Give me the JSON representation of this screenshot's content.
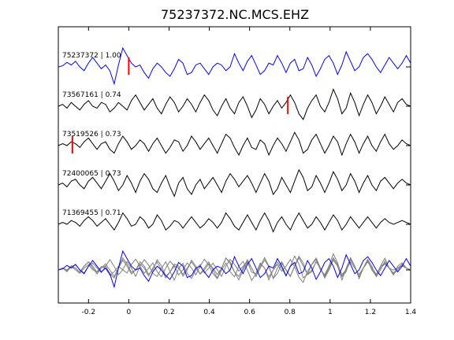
{
  "chart_data": {
    "type": "line",
    "title": "75237372.NC.MCS.EHZ",
    "xlabel": "",
    "ylabel": "",
    "xlim": [
      -0.35,
      1.4
    ],
    "x_ticks": [
      -0.2,
      0,
      0.2,
      0.4,
      0.6,
      0.8,
      1,
      1.2,
      1.4
    ],
    "x_tick_labels": [
      "-0.2",
      "0",
      "0.2",
      "0.4",
      "0.6",
      "0.8",
      "1",
      "1.2",
      "1.4"
    ],
    "grid": false,
    "series": [
      {
        "name": "75237372 | 1.00",
        "color": "#0000ff",
        "pick_time": 0.0,
        "samples": [
          0.0,
          0.03,
          0.12,
          0.05,
          0.15,
          0.0,
          -0.1,
          0.1,
          0.25,
          0.1,
          -0.05,
          0.05,
          -0.1,
          -0.45,
          0.05,
          0.5,
          0.3,
          0.1,
          0.0,
          0.05,
          -0.15,
          -0.3,
          -0.05,
          0.1,
          0.0,
          -0.15,
          -0.25,
          -0.05,
          0.2,
          0.1,
          -0.2,
          -0.15,
          0.05,
          0.1,
          -0.05,
          -0.2,
          0.0,
          0.1,
          0.05,
          -0.1,
          0.0,
          0.35,
          0.1,
          -0.1,
          0.15,
          0.3,
          0.05,
          -0.2,
          -0.1,
          0.1,
          0.05,
          0.3,
          0.1,
          -0.15,
          0.1,
          0.2,
          -0.1,
          -0.05,
          0.25,
          0.05,
          -0.25,
          -0.05,
          0.2,
          0.3,
          0.1,
          -0.2,
          0.05,
          0.4,
          0.15,
          -0.1,
          0.0,
          0.25,
          0.35,
          0.2,
          0.0,
          -0.15,
          0.05,
          0.25,
          0.1,
          -0.05,
          0.1,
          0.3,
          0.1
        ]
      },
      {
        "name": "73567161 | 0.74",
        "color": "#000000",
        "pick_time": 0.79,
        "samples": [
          0.0,
          0.05,
          -0.05,
          0.1,
          0.0,
          -0.1,
          0.05,
          0.15,
          0.0,
          -0.05,
          0.1,
          0.05,
          -0.15,
          -0.05,
          0.1,
          0.0,
          -0.1,
          0.15,
          0.3,
          0.1,
          -0.1,
          0.05,
          0.2,
          -0.05,
          -0.2,
          0.05,
          0.25,
          0.1,
          -0.15,
          0.0,
          0.2,
          0.05,
          -0.15,
          0.1,
          0.3,
          0.15,
          -0.1,
          -0.25,
          0.0,
          0.2,
          -0.05,
          -0.2,
          0.1,
          0.25,
          0.0,
          -0.3,
          -0.1,
          0.2,
          0.05,
          -0.2,
          0.0,
          0.15,
          -0.05,
          0.1,
          0.3,
          0.1,
          -0.2,
          -0.35,
          -0.05,
          0.15,
          0.3,
          0.0,
          -0.15,
          0.1,
          0.45,
          0.2,
          -0.2,
          -0.05,
          0.35,
          0.1,
          -0.25,
          0.05,
          0.3,
          0.1,
          -0.2,
          0.0,
          0.25,
          0.05,
          -0.15,
          0.1,
          0.2,
          0.05,
          0.0
        ]
      },
      {
        "name": "73519526 | 0.73",
        "color": "#000000",
        "pick_time": -0.28,
        "samples": [
          0.0,
          0.05,
          0.0,
          0.1,
          0.05,
          -0.05,
          0.1,
          0.2,
          0.05,
          -0.1,
          0.05,
          0.1,
          -0.1,
          -0.2,
          0.05,
          0.25,
          0.1,
          -0.1,
          0.0,
          0.15,
          0.05,
          -0.15,
          0.05,
          0.2,
          0.0,
          -0.2,
          -0.05,
          0.15,
          0.1,
          -0.15,
          0.0,
          0.25,
          0.1,
          -0.1,
          0.05,
          0.2,
          0.0,
          -0.2,
          0.05,
          0.3,
          0.2,
          -0.05,
          -0.25,
          0.0,
          0.2,
          -0.05,
          -0.1,
          0.15,
          0.05,
          -0.25,
          0.0,
          0.2,
          0.05,
          -0.15,
          0.1,
          0.35,
          0.15,
          -0.2,
          -0.1,
          0.15,
          0.3,
          0.05,
          -0.2,
          0.0,
          0.25,
          0.1,
          -0.25,
          0.05,
          0.3,
          0.1,
          -0.2,
          0.05,
          0.25,
          0.0,
          -0.15,
          0.1,
          0.3,
          0.05,
          -0.1,
          0.0,
          0.15,
          0.05,
          0.0
        ]
      },
      {
        "name": "72400065 | 0.73",
        "color": "#000000",
        "pick_time": null,
        "samples": [
          0.0,
          0.05,
          -0.05,
          0.1,
          0.15,
          0.0,
          -0.1,
          0.1,
          0.2,
          0.05,
          -0.1,
          0.1,
          0.3,
          0.1,
          -0.15,
          0.0,
          0.25,
          0.05,
          -0.2,
          0.1,
          0.3,
          0.15,
          -0.1,
          -0.2,
          0.05,
          0.25,
          -0.05,
          -0.3,
          0.05,
          0.2,
          -0.1,
          -0.25,
          0.0,
          0.15,
          -0.1,
          0.05,
          0.2,
          0.0,
          -0.2,
          0.1,
          0.3,
          0.15,
          -0.05,
          0.1,
          0.25,
          0.05,
          -0.2,
          0.05,
          0.3,
          0.1,
          -0.25,
          -0.1,
          0.2,
          0.0,
          -0.2,
          0.1,
          0.4,
          0.2,
          -0.15,
          -0.05,
          0.25,
          0.05,
          -0.2,
          0.05,
          0.35,
          0.15,
          -0.15,
          0.0,
          0.3,
          0.1,
          -0.2,
          0.05,
          0.25,
          0.0,
          -0.15,
          0.1,
          0.2,
          0.05,
          -0.1,
          0.05,
          0.15,
          0.05,
          0.0
        ]
      },
      {
        "name": "71369455 | 0.71",
        "color": "#000000",
        "pick_time": null,
        "samples": [
          0.0,
          0.05,
          0.0,
          0.1,
          0.05,
          -0.05,
          0.1,
          0.2,
          0.1,
          -0.05,
          0.05,
          0.15,
          0.0,
          -0.15,
          0.05,
          0.3,
          0.15,
          -0.05,
          0.0,
          0.2,
          0.1,
          -0.1,
          0.0,
          0.25,
          0.1,
          -0.15,
          -0.05,
          0.1,
          0.05,
          -0.1,
          0.05,
          0.2,
          0.05,
          -0.1,
          0.0,
          0.15,
          0.05,
          -0.1,
          0.05,
          0.3,
          0.15,
          -0.05,
          -0.15,
          0.05,
          0.25,
          0.05,
          -0.15,
          0.1,
          0.3,
          0.1,
          -0.2,
          0.05,
          0.2,
          0.0,
          -0.15,
          0.1,
          0.3,
          0.1,
          -0.1,
          0.0,
          0.2,
          0.05,
          -0.15,
          0.05,
          0.25,
          0.1,
          -0.15,
          0.0,
          0.2,
          0.05,
          -0.1,
          0.05,
          0.2,
          0.05,
          -0.1,
          0.05,
          0.15,
          0.05,
          0.0,
          0.05,
          0.1,
          0.05,
          0.0
        ]
      }
    ],
    "overlay": {
      "description_printed": false,
      "highlight_series": "75237372 | 1.00",
      "highlight_color": "#0000ff",
      "other_color": "#808080"
    }
  }
}
